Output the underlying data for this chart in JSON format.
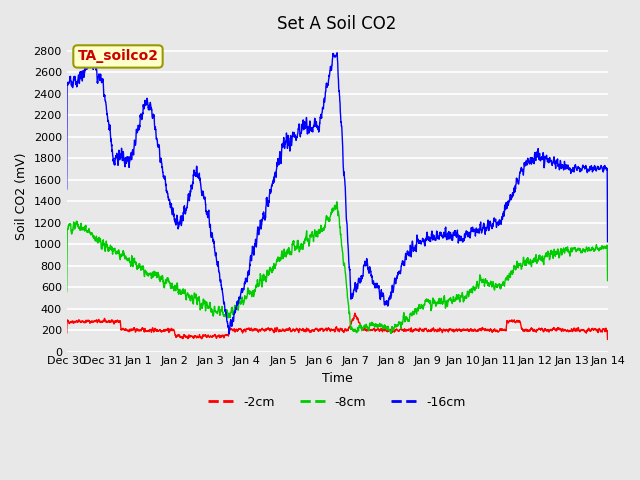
{
  "title": "Set A Soil CO2",
  "xlabel": "Time",
  "ylabel": "Soil CO2 (mV)",
  "ylim": [
    0,
    2900
  ],
  "yticks": [
    0,
    200,
    400,
    600,
    800,
    1000,
    1200,
    1400,
    1600,
    1800,
    2000,
    2200,
    2400,
    2600,
    2800
  ],
  "background_color": "#e8e8e8",
  "plot_bg_color": "#e8e8e8",
  "grid_color": "#ffffff",
  "line_2cm_color": "#ff0000",
  "line_8cm_color": "#00cc00",
  "line_16cm_color": "#0000ff",
  "legend_label_2cm": "-2cm",
  "legend_label_8cm": "-8cm",
  "legend_label_16cm": "-16cm",
  "box_label": "TA_soilco2",
  "box_facecolor": "#ffffcc",
  "box_edgecolor": "#999900",
  "box_textcolor": "#cc0000",
  "xtick_labels": [
    "Dec 30",
    "Dec 31",
    "Jan 1",
    "Jan 2",
    "Jan 3",
    "Jan 4",
    "Jan 5",
    "Jan 6",
    "Jan 7",
    "Jan 8",
    "Jan 9",
    "Jan 10",
    "Jan 11",
    "Jan 12",
    "Jan 13",
    "Jan 14"
  ],
  "xtick_positions": [
    0,
    1,
    2,
    3,
    4,
    5,
    6,
    7,
    8,
    9,
    10,
    11,
    12,
    13,
    14,
    15
  ]
}
